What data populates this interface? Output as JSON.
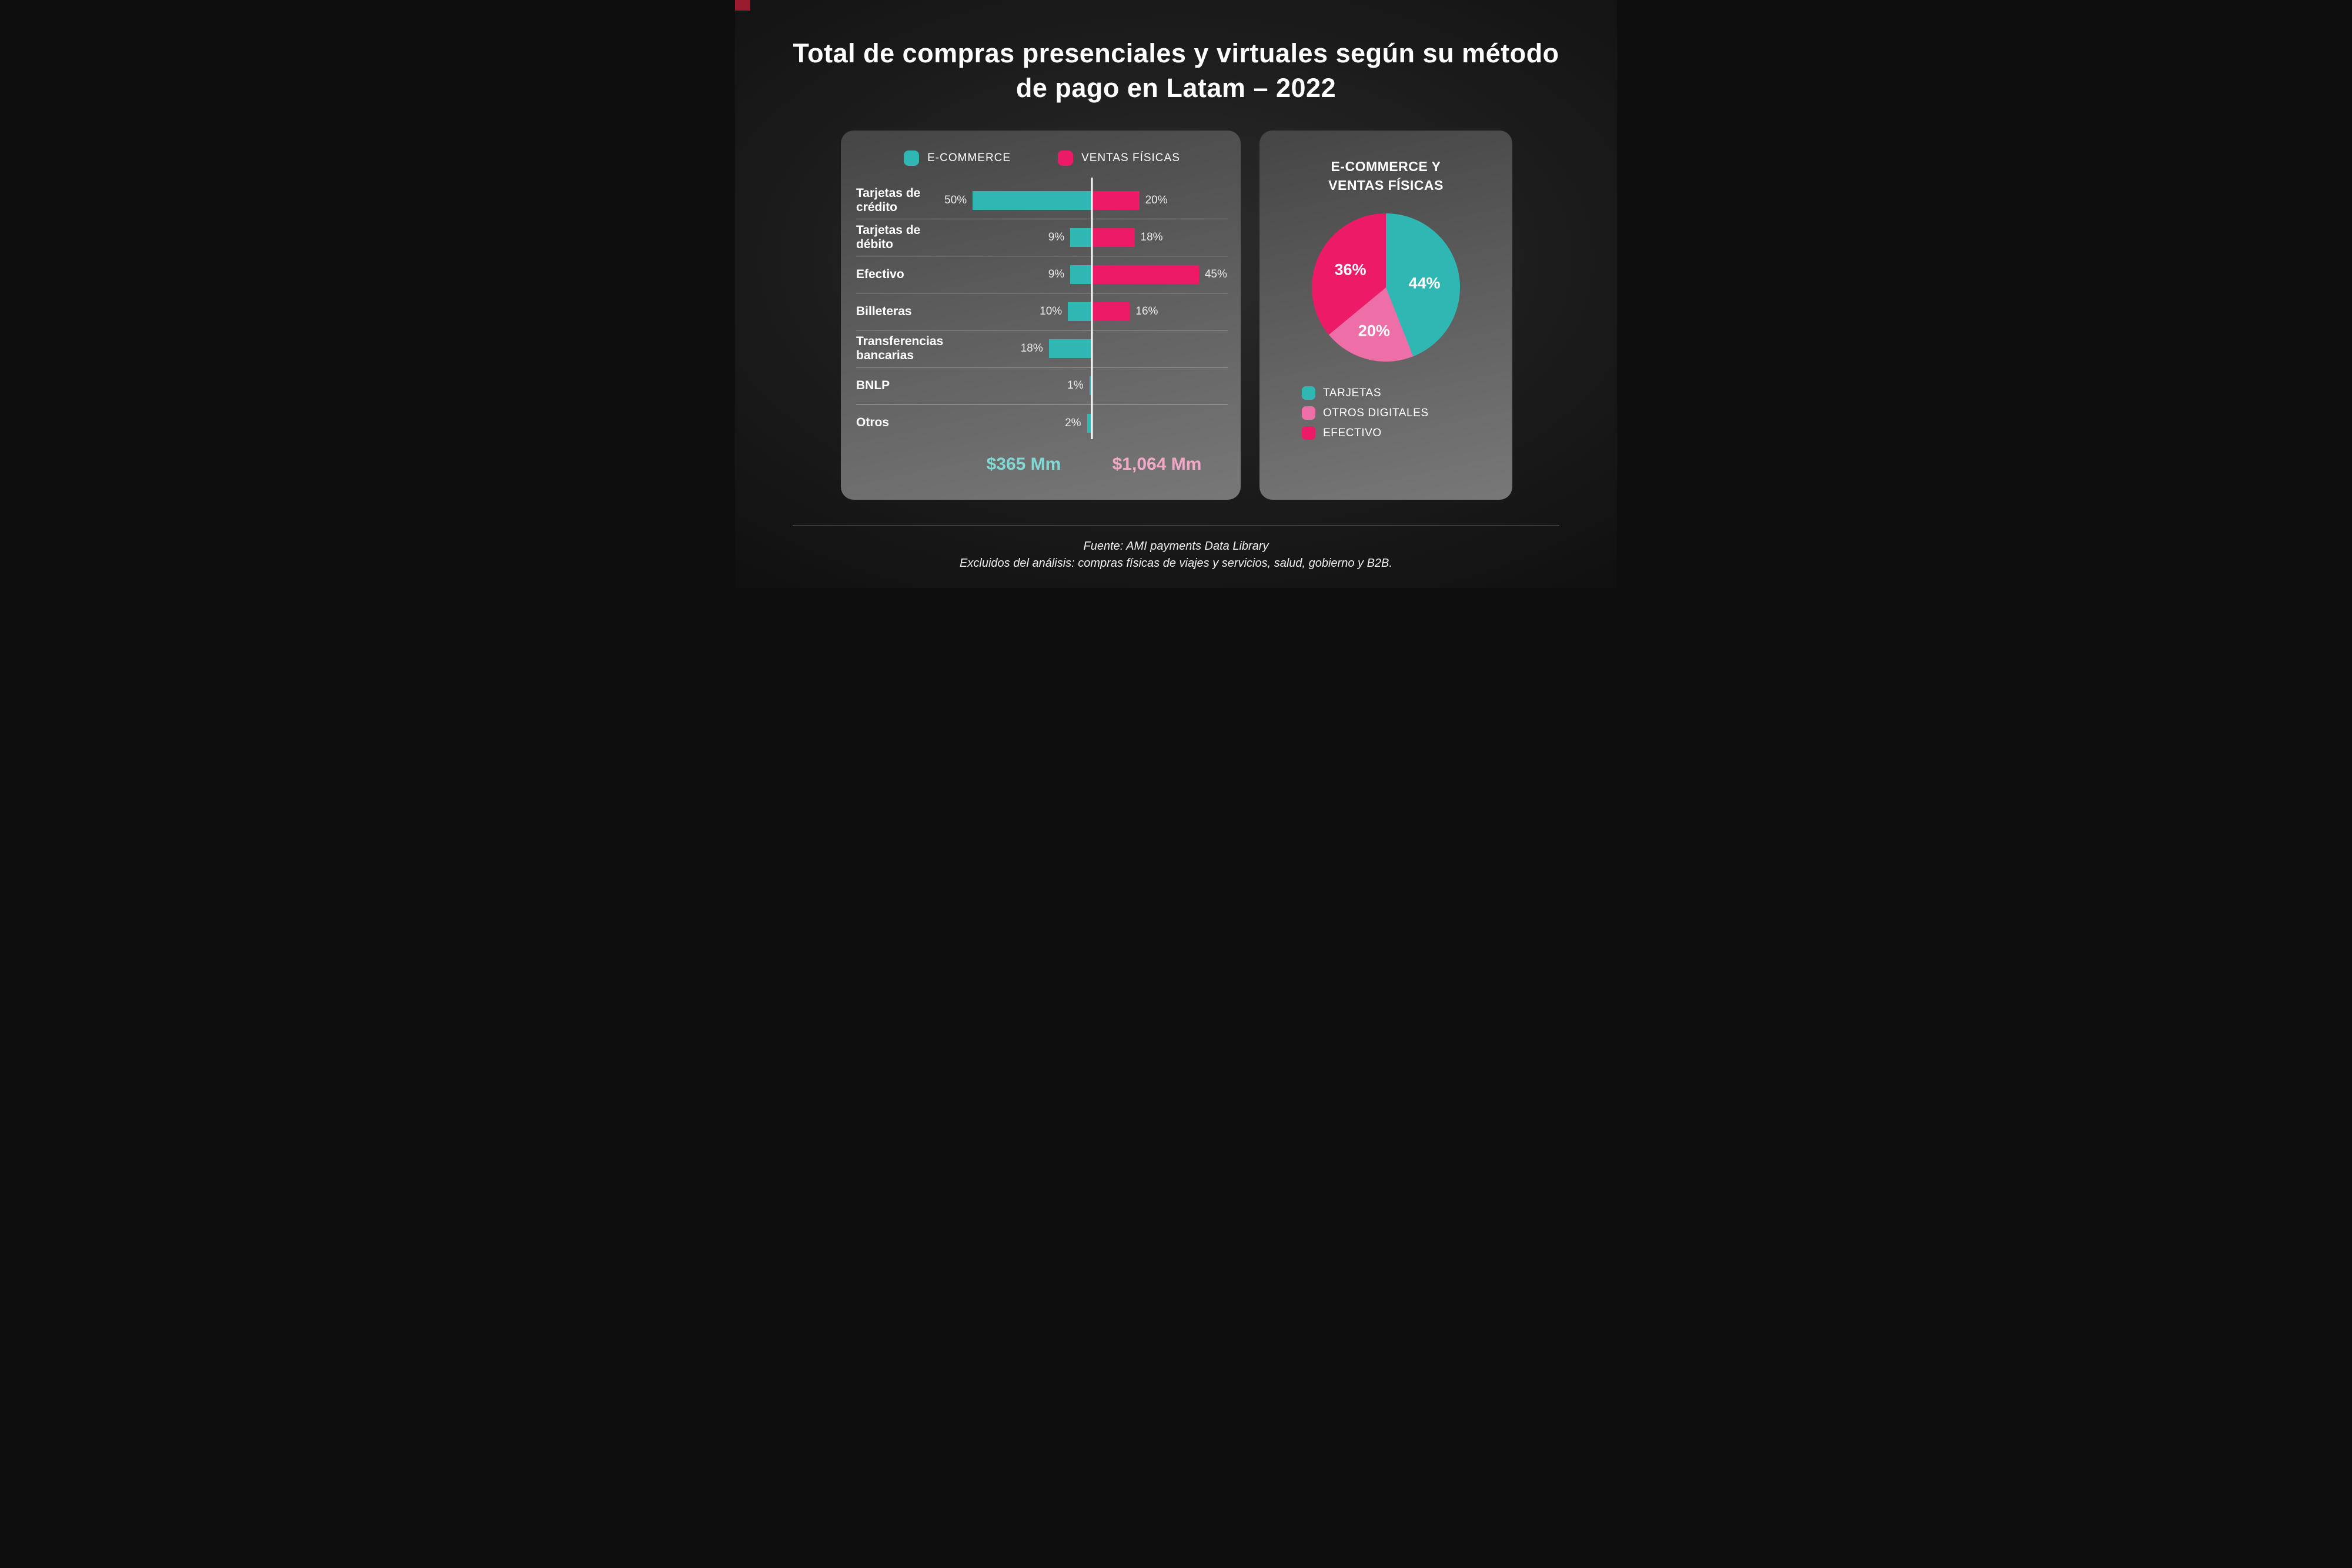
{
  "title": {
    "line1": "Total de compras presenciales y virtuales según su método",
    "line2": "de pago en Latam – 2022"
  },
  "chart_data": [
    {
      "type": "bar",
      "variant": "diverging-horizontal",
      "unit": "%",
      "legend": [
        "E-COMMERCE",
        "VENTAS FÍSICAS"
      ],
      "categories": [
        "Tarjetas de crédito",
        "Tarjetas de débito",
        "Efectivo",
        "Billeteras",
        "Transferencias bancarias",
        "BNLP",
        "Otros"
      ],
      "series": [
        {
          "name": "E-COMMERCE",
          "side": "left",
          "color": "#2fb8b3",
          "values": [
            50,
            9,
            9,
            10,
            18,
            1,
            2
          ]
        },
        {
          "name": "VENTAS FÍSICAS",
          "side": "right",
          "color": "#ec1a67",
          "values": [
            20,
            18,
            45,
            16,
            null,
            null,
            null
          ]
        }
      ],
      "totals": [
        {
          "series": "E-COMMERCE",
          "label": "$365 Mm",
          "color": "#82d8d3"
        },
        {
          "series": "VENTAS FÍSICAS",
          "label": "$1,064 Mm",
          "color": "#f2a9c8"
        }
      ]
    },
    {
      "type": "pie",
      "title": {
        "line1": "E-COMMERCE Y",
        "line2": "VENTAS FÍSICAS"
      },
      "slices": [
        {
          "label": "TARJETAS",
          "value": 44,
          "color": "#2fb8b3"
        },
        {
          "label": "OTROS DIGITALES",
          "value": 20,
          "color": "#ee6fa8"
        },
        {
          "label": "EFECTIVO",
          "value": 36,
          "color": "#ec1a67"
        }
      ]
    }
  ],
  "footer": {
    "line1": "Fuente: AMI payments Data Library",
    "line2": "Excluidos del análisis: compras físicas de viajes y servicios, salud, gobierno y B2B."
  },
  "colors": {
    "background": "#1c1c1c",
    "card": "#5a5a5a",
    "ecommerce": "#2fb8b3",
    "ventas_fisicas": "#ec1a67",
    "otros_digitales": "#ee6fa8"
  }
}
